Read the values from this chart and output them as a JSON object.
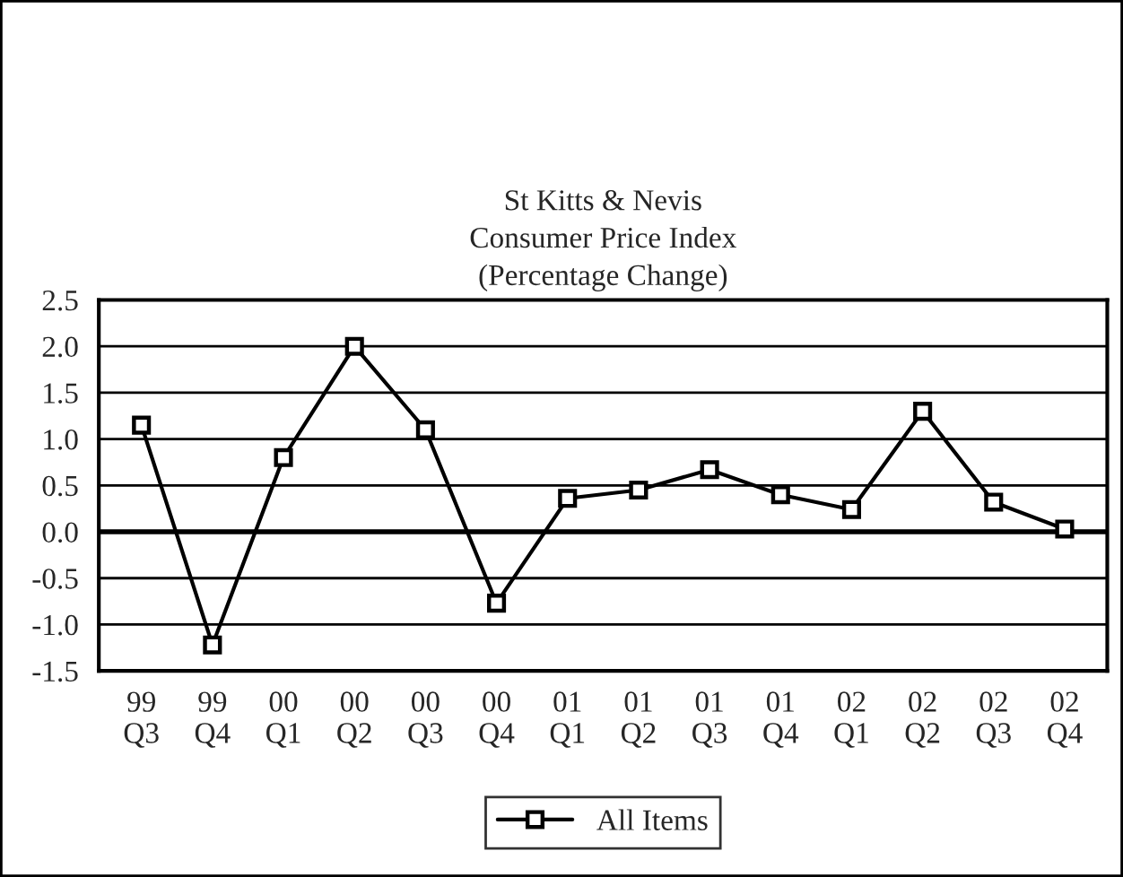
{
  "chart_data": {
    "type": "line",
    "title": "St Kitts & Nevis\nConsumer Price Index\n(Percentage Change)",
    "categories": [
      "99\nQ3",
      "99\nQ4",
      "00\nQ1",
      "00\nQ2",
      "00\nQ3",
      "00\nQ4",
      "01\nQ1",
      "01\nQ2",
      "01\nQ3",
      "01\nQ4",
      "02\nQ1",
      "02\nQ2",
      "02\nQ3",
      "02\nQ4"
    ],
    "series": [
      {
        "name": "All Items",
        "color": "#000000",
        "values": [
          1.15,
          -1.22,
          0.8,
          2.0,
          1.1,
          -0.77,
          0.36,
          0.45,
          0.67,
          0.4,
          0.24,
          1.3,
          0.32,
          0.03
        ]
      }
    ],
    "ylim": [
      -1.5,
      2.5
    ],
    "yticks": [
      {
        "value": -1.5,
        "label": "-1.5"
      },
      {
        "value": -1.0,
        "label": "-1.0"
      },
      {
        "value": -0.5,
        "label": "-0.5"
      },
      {
        "value": 0.0,
        "label": "0.0"
      },
      {
        "value": 0.5,
        "label": "0.5"
      },
      {
        "value": 1.0,
        "label": "1.0"
      },
      {
        "value": 1.5,
        "label": "1.5"
      },
      {
        "value": 2.0,
        "label": "2.0"
      },
      {
        "value": 2.5,
        "label": "2.5"
      }
    ],
    "grid": "y",
    "legend": "bottom",
    "marker": "square",
    "line_style": "solid"
  }
}
